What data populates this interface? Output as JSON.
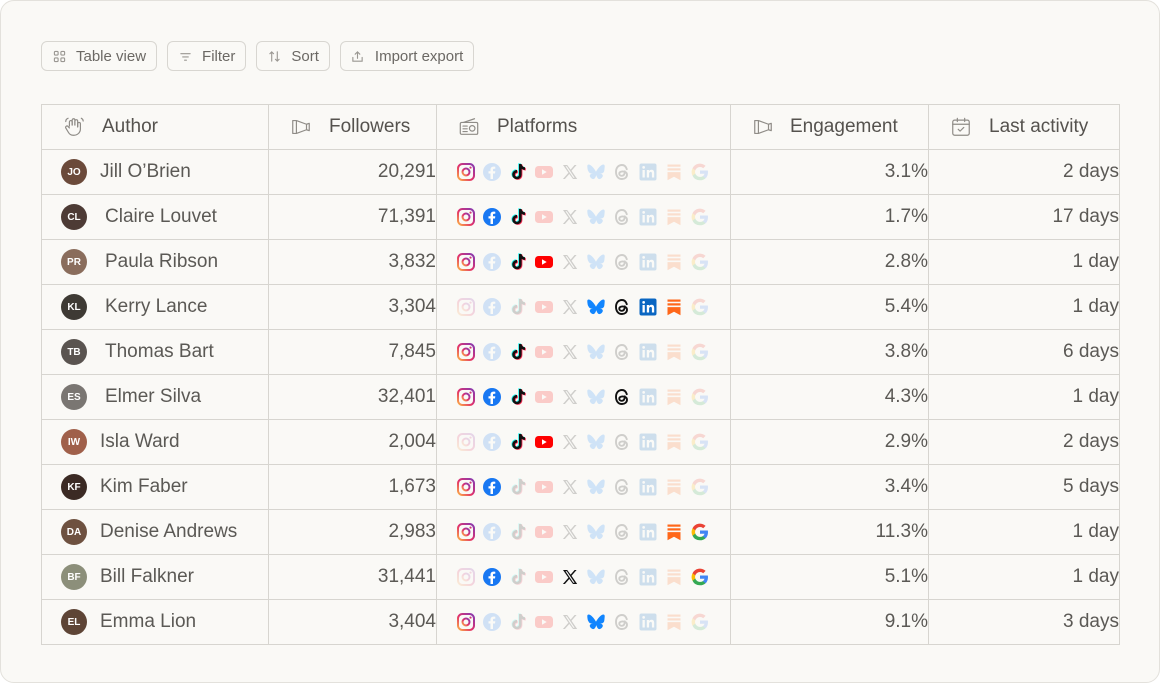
{
  "toolbar": {
    "table_view": "Table view",
    "filter": "Filter",
    "sort": "Sort",
    "import_export": "Import export"
  },
  "columns": {
    "author": "Author",
    "followers": "Followers",
    "platforms": "Platforms",
    "engagement": "Engagement",
    "last_activity": "Last activity"
  },
  "platform_order": [
    "instagram",
    "facebook",
    "tiktok",
    "youtube",
    "x",
    "bluesky",
    "threads",
    "linkedin",
    "substack",
    "google"
  ],
  "platform_colors": {
    "instagram": "#e1306c",
    "facebook": "#1877f2",
    "tiktok": "#111111",
    "youtube": "#ff0000",
    "x": "#111111",
    "bluesky": "#1185fe",
    "threads": "#111111",
    "linkedin": "#0a66c2",
    "substack": "#ff6719",
    "google": "#4285f4"
  },
  "rows": [
    {
      "name": "Jill O’Brien",
      "followers": "20,291",
      "engagement": "3.1%",
      "last": "2 days",
      "avatar_color": "#6b4a3a",
      "platforms": {
        "instagram": true,
        "facebook": false,
        "tiktok": true,
        "youtube": false,
        "x": false,
        "bluesky": false,
        "threads": false,
        "linkedin": false,
        "substack": false,
        "google": false
      }
    },
    {
      "name": "Claire Louvet",
      "followers": "71,391",
      "engagement": "1.7%",
      "last": "17 days",
      "avatar_color": "#4d3b35",
      "platforms": {
        "instagram": true,
        "facebook": true,
        "tiktok": true,
        "youtube": false,
        "x": false,
        "bluesky": false,
        "threads": false,
        "linkedin": false,
        "substack": false,
        "google": false
      }
    },
    {
      "name": "Paula Ribson",
      "followers": "3,832",
      "engagement": "2.8%",
      "last": "1 day",
      "avatar_color": "#8a6d5c",
      "platforms": {
        "instagram": true,
        "facebook": false,
        "tiktok": true,
        "youtube": true,
        "x": false,
        "bluesky": false,
        "threads": false,
        "linkedin": false,
        "substack": false,
        "google": false
      }
    },
    {
      "name": "Kerry Lance",
      "followers": "3,304",
      "engagement": "5.4%",
      "last": "1 day",
      "avatar_color": "#3e3a34",
      "platforms": {
        "instagram": false,
        "facebook": false,
        "tiktok": false,
        "youtube": false,
        "x": false,
        "bluesky": true,
        "threads": true,
        "linkedin": true,
        "substack": true,
        "google": false
      }
    },
    {
      "name": "Thomas Bart",
      "followers": "7,845",
      "engagement": "3.8%",
      "last": "6 days",
      "avatar_color": "#5a5450",
      "platforms": {
        "instagram": true,
        "facebook": false,
        "tiktok": true,
        "youtube": false,
        "x": false,
        "bluesky": false,
        "threads": false,
        "linkedin": false,
        "substack": false,
        "google": false
      }
    },
    {
      "name": "Elmer Silva",
      "followers": "32,401",
      "engagement": "4.3%",
      "last": "1 day",
      "avatar_color": "#7a7672",
      "platforms": {
        "instagram": true,
        "facebook": true,
        "tiktok": true,
        "youtube": false,
        "x": false,
        "bluesky": false,
        "threads": true,
        "linkedin": false,
        "substack": false,
        "google": false
      }
    },
    {
      "name": "Isla Ward",
      "followers": "2,004",
      "engagement": "2.9%",
      "last": "2 days",
      "avatar_color": "#a0604a",
      "platforms": {
        "instagram": false,
        "facebook": false,
        "tiktok": true,
        "youtube": true,
        "x": false,
        "bluesky": false,
        "threads": false,
        "linkedin": false,
        "substack": false,
        "google": false
      }
    },
    {
      "name": "Kim Faber",
      "followers": "1,673",
      "engagement": "3.4%",
      "last": "5 days",
      "avatar_color": "#3b2a24",
      "platforms": {
        "instagram": true,
        "facebook": true,
        "tiktok": false,
        "youtube": false,
        "x": false,
        "bluesky": false,
        "threads": false,
        "linkedin": false,
        "substack": false,
        "google": false
      }
    },
    {
      "name": "Denise Andrews",
      "followers": "2,983",
      "engagement": "11.3%",
      "last": "1 day",
      "avatar_color": "#6e5140",
      "platforms": {
        "instagram": true,
        "facebook": false,
        "tiktok": false,
        "youtube": false,
        "x": false,
        "bluesky": false,
        "threads": false,
        "linkedin": false,
        "substack": true,
        "google": true
      }
    },
    {
      "name": "Bill Falkner",
      "followers": "31,441",
      "engagement": "5.1%",
      "last": "1 day",
      "avatar_color": "#8c8f7a",
      "platforms": {
        "instagram": false,
        "facebook": true,
        "tiktok": false,
        "youtube": false,
        "x": true,
        "bluesky": false,
        "threads": false,
        "linkedin": false,
        "substack": false,
        "google": true
      }
    },
    {
      "name": "Emma Lion",
      "followers": "3,404",
      "engagement": "9.1%",
      "last": "3 days",
      "avatar_color": "#5e4536",
      "platforms": {
        "instagram": true,
        "facebook": false,
        "tiktok": false,
        "youtube": false,
        "x": false,
        "bluesky": true,
        "threads": false,
        "linkedin": false,
        "substack": false,
        "google": false
      }
    }
  ]
}
